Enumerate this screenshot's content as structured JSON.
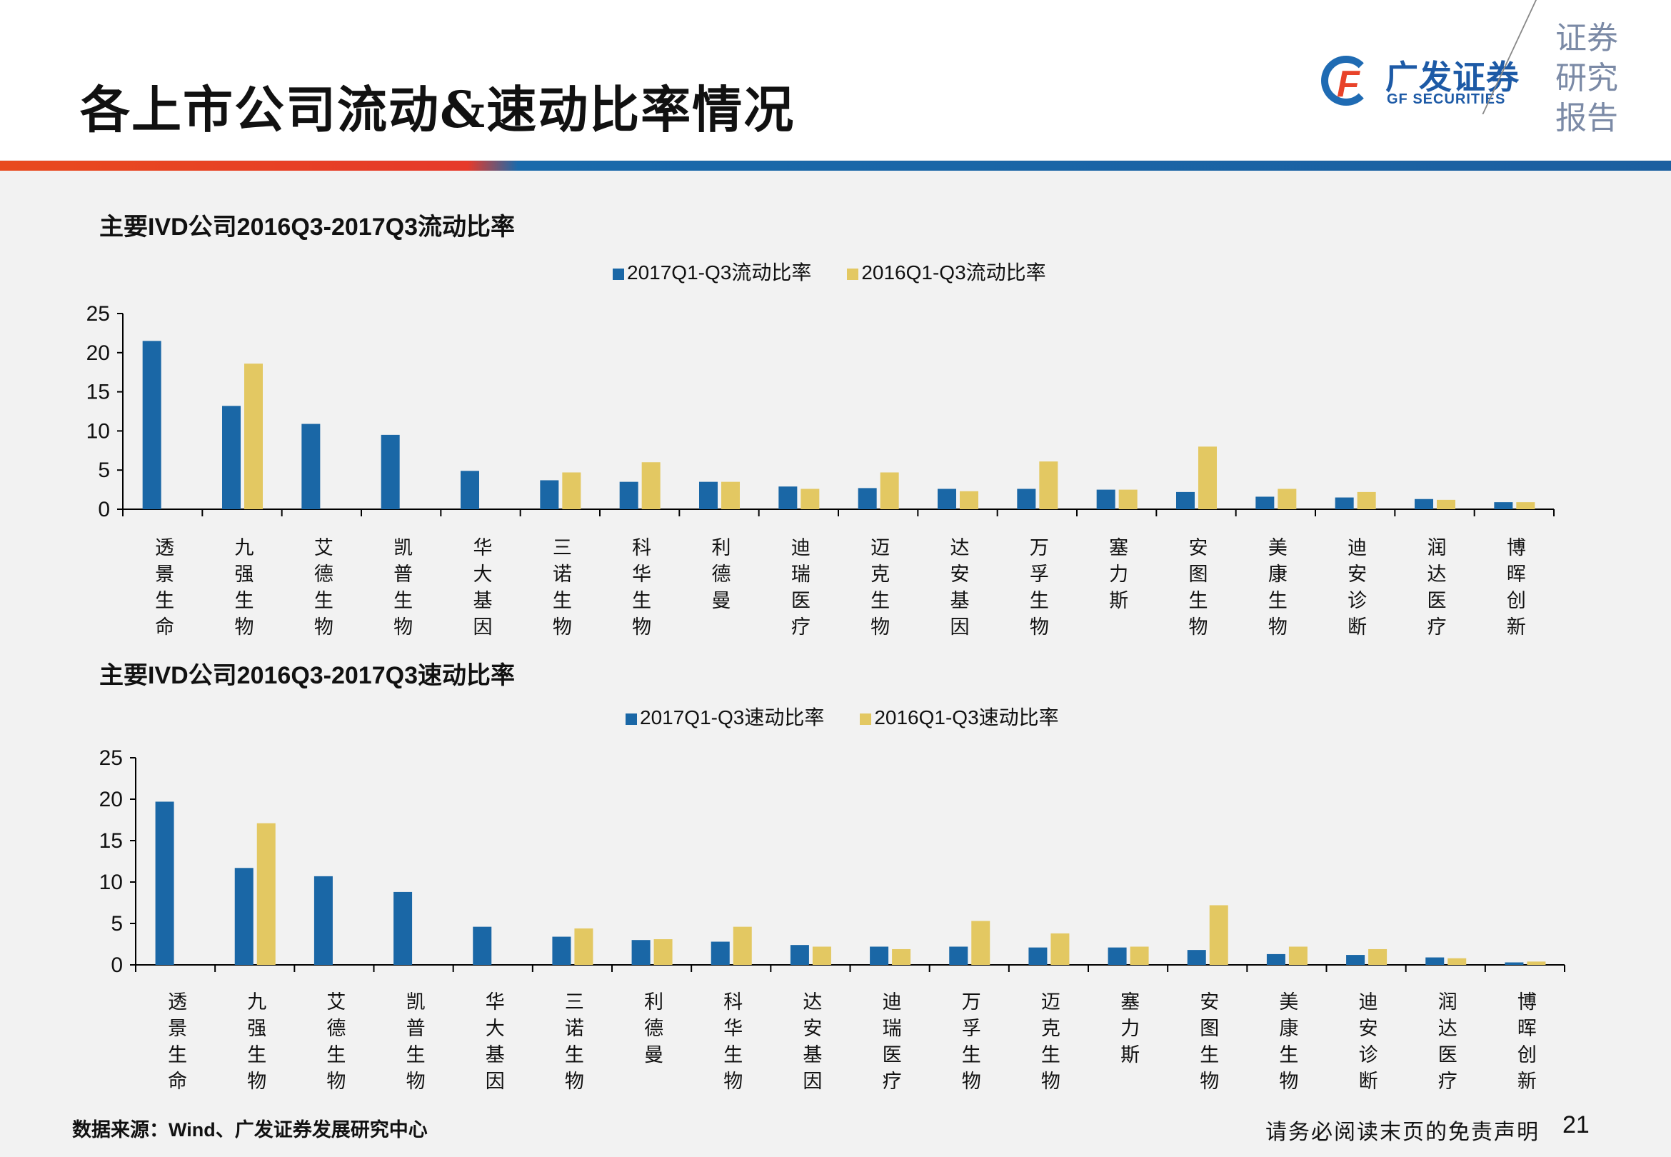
{
  "header": {
    "title": "各上市公司流动&速动比率情况",
    "logo_cn": "广发证券",
    "logo_en": "GF SECURITIES",
    "report_label": "证券研究报告"
  },
  "colors": {
    "series1": "#1a67a6",
    "series2": "#e3c862"
  },
  "chart_data": [
    {
      "type": "bar",
      "title": "主要IVD公司2016Q3-2017Q3流动比率",
      "categories": [
        "透景生命",
        "九强生物",
        "艾德生物",
        "凯普生物",
        "华大基因",
        "三诺生物",
        "科华生物",
        "利德曼",
        "迪瑞医疗",
        "迈克生物",
        "达安基因",
        "万孚生物",
        "塞力斯",
        "安图生物",
        "美康生物",
        "迪安诊断",
        "润达医疗",
        "博晖创新"
      ],
      "series": [
        {
          "name": "2017Q1-Q3流动比率",
          "values": [
            21.5,
            13.2,
            10.9,
            9.5,
            4.9,
            3.7,
            3.5,
            3.5,
            2.9,
            2.7,
            2.6,
            2.6,
            2.5,
            2.2,
            1.6,
            1.5,
            1.3,
            0.9
          ]
        },
        {
          "name": "2016Q1-Q3流动比率",
          "values": [
            null,
            18.6,
            null,
            null,
            null,
            4.7,
            6.0,
            3.5,
            2.6,
            4.7,
            2.3,
            6.1,
            2.5,
            8.0,
            2.6,
            2.2,
            1.2,
            0.9
          ]
        }
      ],
      "yticks": [
        "0",
        "5",
        "10",
        "15",
        "20",
        "25"
      ],
      "ylim": [
        0,
        25
      ],
      "legend": "top-center"
    },
    {
      "type": "bar",
      "title": "主要IVD公司2016Q3-2017Q3速动比率",
      "categories": [
        "透景生命",
        "九强生物",
        "艾德生物",
        "凯普生物",
        "华大基因",
        "三诺生物",
        "利德曼",
        "科华生物",
        "达安基因",
        "迪瑞医疗",
        "万孚生物",
        "迈克生物",
        "塞力斯",
        "安图生物",
        "美康生物",
        "迪安诊断",
        "润达医疗",
        "博晖创新"
      ],
      "series": [
        {
          "name": "2017Q1-Q3速动比率",
          "values": [
            19.7,
            11.7,
            10.7,
            8.8,
            4.6,
            3.4,
            3.0,
            2.8,
            2.4,
            2.2,
            2.2,
            2.1,
            2.1,
            1.8,
            1.3,
            1.2,
            0.9,
            0.3
          ]
        },
        {
          "name": "2016Q1-Q3速动比率",
          "values": [
            null,
            17.1,
            null,
            null,
            null,
            4.4,
            3.1,
            4.6,
            2.2,
            1.9,
            5.3,
            3.8,
            2.2,
            7.2,
            2.2,
            1.9,
            0.8,
            0.4
          ]
        }
      ],
      "yticks": [
        "0",
        "5",
        "10",
        "15",
        "20",
        "25"
      ],
      "ylim": [
        0,
        25
      ],
      "legend": "top-center"
    }
  ],
  "footer": {
    "source": "数据来源：Wind、广发证券发展研究中心",
    "disclaimer": "请务必阅读末页的免责声明",
    "page_number": "21"
  }
}
